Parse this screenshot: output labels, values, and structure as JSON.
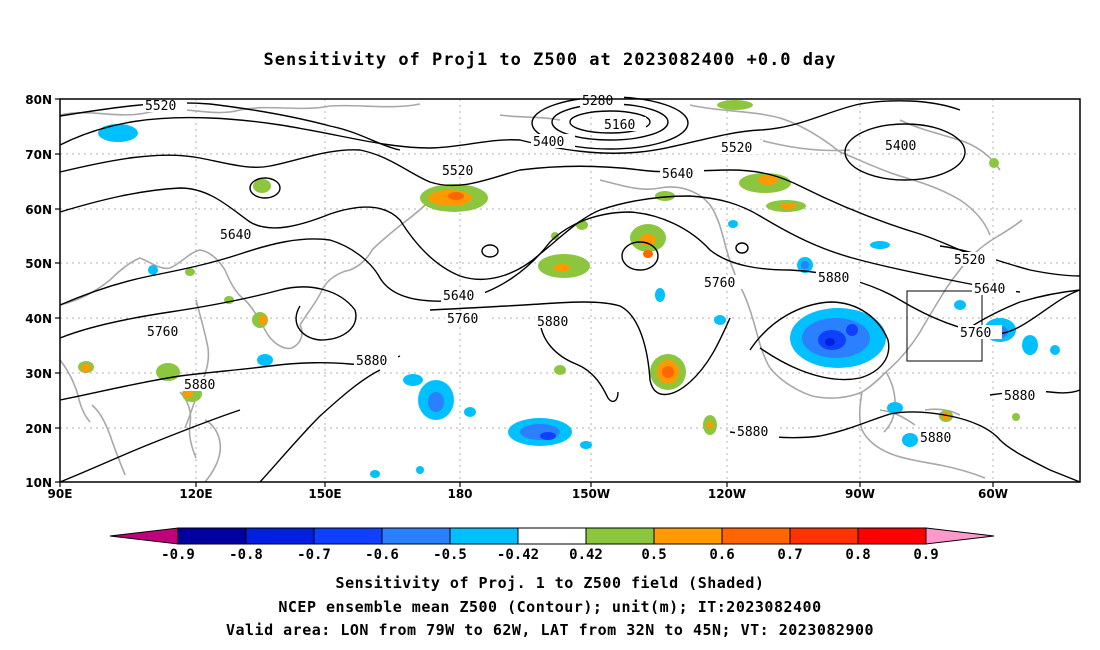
{
  "title": "Sensitivity of Proj1 to Z500 at 2023082400 +0.0 day",
  "axes": {
    "lat_labels": [
      "80N",
      "70N",
      "60N",
      "50N",
      "40N",
      "30N",
      "20N",
      "10N"
    ],
    "lon_labels": [
      "90E",
      "120E",
      "150E",
      "180",
      "150W",
      "120W",
      "90W",
      "60W"
    ]
  },
  "contour_labels": [
    "5520",
    "5280",
    "5160",
    "5400",
    "5400",
    "5520",
    "5520",
    "5640",
    "5640",
    "5520",
    "5640",
    "5760",
    "5760",
    "5880",
    "5880",
    "5640",
    "5760",
    "5880",
    "5760",
    "5880",
    "5880",
    "5880"
  ],
  "colorbar": {
    "labels": [
      "-0.9",
      "-0.8",
      "-0.7",
      "-0.6",
      "-0.5",
      "-0.42",
      "0.42",
      "0.5",
      "0.6",
      "0.7",
      "0.8",
      "0.9"
    ],
    "colors": [
      "#0000a0",
      "#0020e0",
      "#1040ff",
      "#2a80ff",
      "#00c0ff",
      "#ffffff",
      "#8cc63f",
      "#ff9900",
      "#ff6600",
      "#ff3300",
      "#ff0000"
    ],
    "low_extend_color": "#c0007a",
    "high_extend_color": "#ff99cc"
  },
  "captions": [
    "Sensitivity of Proj. 1 to Z500 field (Shaded)",
    "NCEP ensemble mean Z500 (Contour); unit(m); IT:2023082400",
    "Valid area: LON from 79W to 62W, LAT from 32N to 45N; VT: 2023082900"
  ]
}
